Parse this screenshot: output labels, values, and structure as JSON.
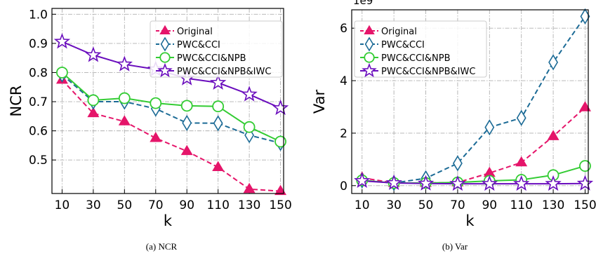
{
  "chart_data": [
    {
      "type": "line",
      "id": "ncr",
      "caption": "(a) NCR",
      "xlabel": "k",
      "ylabel": "NCR",
      "x": [
        10,
        30,
        50,
        70,
        90,
        110,
        130,
        150
      ],
      "x_ticks": [
        "10",
        "30",
        "50",
        "70",
        "90",
        "110",
        "130",
        "150"
      ],
      "ylim": [
        0.385,
        1.02
      ],
      "y_ticks": [
        0.5,
        0.6,
        0.7,
        0.8,
        0.9,
        1.0
      ],
      "y_tick_labels": [
        "0.5",
        "0.6",
        "0.7",
        "0.8",
        "0.9",
        "1.0"
      ],
      "grid": true,
      "legend_position": "top-right",
      "series": [
        {
          "name": "Original",
          "color": "#e5156a",
          "marker": "triangle",
          "dash": "dashed",
          "values": [
            0.775,
            0.66,
            0.632,
            0.575,
            0.53,
            0.475,
            0.4,
            0.393
          ]
        },
        {
          "name": "PWC&CCI",
          "color": "#1c6b96",
          "marker": "thin-diamond",
          "dash": "dashed",
          "values": [
            0.793,
            0.7,
            0.7,
            0.676,
            0.627,
            0.626,
            0.585,
            0.558
          ]
        },
        {
          "name": "PWC&CCI&NPB",
          "color": "#33cc33",
          "marker": "circle",
          "dash": "solid",
          "values": [
            0.8,
            0.705,
            0.712,
            0.695,
            0.686,
            0.684,
            0.613,
            0.563
          ]
        },
        {
          "name": "PWC&CCI&NPB&IWC",
          "color": "#6a0dbd",
          "marker": "star",
          "dash": "solid",
          "values": [
            0.906,
            0.86,
            0.828,
            0.811,
            0.78,
            0.765,
            0.725,
            0.678
          ]
        }
      ]
    },
    {
      "type": "line",
      "id": "var",
      "caption": "(b) Var",
      "xlabel": "k",
      "ylabel": "Var",
      "y_offset_label": "1e9",
      "x": [
        10,
        30,
        50,
        70,
        90,
        110,
        130,
        150
      ],
      "x_ticks": [
        "10",
        "30",
        "50",
        "70",
        "90",
        "110",
        "130",
        "150"
      ],
      "ylim": [
        -0.3,
        6.7
      ],
      "y_ticks": [
        0,
        2,
        4,
        6
      ],
      "y_tick_labels": [
        "0",
        "2",
        "4",
        "6"
      ],
      "grid": true,
      "legend_position": "top-left",
      "series": [
        {
          "name": "Original",
          "color": "#e5156a",
          "marker": "triangle",
          "dash": "dashed",
          "values": [
            0.3,
            0.1,
            0.1,
            0.12,
            0.48,
            0.88,
            1.88,
            2.98
          ]
        },
        {
          "name": "PWC&CCI",
          "color": "#1c6b96",
          "marker": "thin-diamond",
          "dash": "dashed",
          "values": [
            0.2,
            0.1,
            0.28,
            0.85,
            2.22,
            2.58,
            4.7,
            6.45
          ]
        },
        {
          "name": "PWC&CCI&NPB",
          "color": "#33cc33",
          "marker": "circle",
          "dash": "solid",
          "values": [
            0.2,
            0.1,
            0.1,
            0.12,
            0.18,
            0.22,
            0.4,
            0.75
          ]
        },
        {
          "name": "PWC&CCI&NPB&IWC",
          "color": "#6a0dbd",
          "marker": "star",
          "dash": "solid",
          "values": [
            0.18,
            0.1,
            0.08,
            0.07,
            0.07,
            0.07,
            0.07,
            0.08
          ]
        }
      ]
    }
  ]
}
